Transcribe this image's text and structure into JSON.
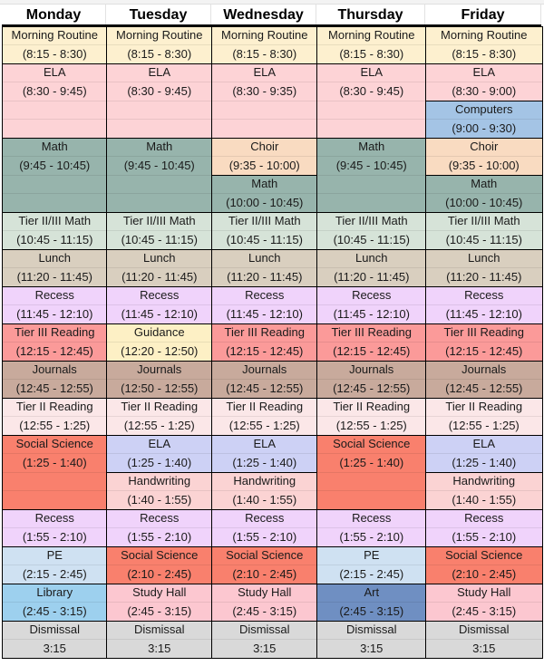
{
  "headers": [
    "Monday",
    "Tuesday",
    "Wednesday",
    "Thursday",
    "Friday"
  ],
  "colors": {
    "morning": "#fdf0cf",
    "ela": "#fdd3d6",
    "math": "#97b4ac",
    "choir": "#f9dbc1",
    "computers": "#a4c4e5",
    "tier_math": "#d6e3d8",
    "lunch": "#d9cfbf",
    "recess": "#f0d3fb",
    "tier3_reading": "#fb9a99",
    "guidance": "#fdf0c5",
    "journals": "#c8aa9c",
    "tier2_reading": "#fbe7e8",
    "social_science": "#f9806d",
    "ela_lav": "#cdd1f5",
    "handwriting": "#fbd3d3",
    "pe": "#cfe1f2",
    "library": "#9dd0ee",
    "study_hall": "#fcc7d0",
    "art": "#6f8fc2",
    "dismissal": "#d9d9d9"
  },
  "columns": [
    {
      "day": "Monday",
      "blocks": [
        {
          "name": "Morning Routine",
          "time": "(8:15 - 8:30)",
          "rows": 2,
          "color": "morning"
        },
        {
          "name": "ELA",
          "time": "(8:30 - 9:45)",
          "rows": 4,
          "color": "ela"
        },
        {
          "name": "Math",
          "time": "(9:45 - 10:45)",
          "rows": 4,
          "color": "math"
        },
        {
          "name": "Tier II/III Math",
          "time": "(10:45 - 11:15)",
          "rows": 2,
          "color": "tier_math"
        },
        {
          "name": "Lunch",
          "time": "(11:20 - 11:45)",
          "rows": 2,
          "color": "lunch"
        },
        {
          "name": "Recess",
          "time": "(11:45 - 12:10)",
          "rows": 2,
          "color": "recess"
        },
        {
          "name": "Tier III Reading",
          "time": "(12:15 - 12:45)",
          "rows": 2,
          "color": "tier3_reading"
        },
        {
          "name": "Journals",
          "time": "(12:45 - 12:55)",
          "rows": 2,
          "color": "journals"
        },
        {
          "name": "Tier II Reading",
          "time": "(12:55 - 1:25)",
          "rows": 2,
          "color": "tier2_reading"
        },
        {
          "name": "Social Science",
          "time": "(1:25 - 1:40)",
          "rows": 4,
          "color": "social_science"
        },
        {
          "name": "Recess",
          "time": "(1:55 - 2:10)",
          "rows": 2,
          "color": "recess"
        },
        {
          "name": "PE",
          "time": "(2:15 - 2:45)",
          "rows": 2,
          "color": "pe"
        },
        {
          "name": "Library",
          "time": "(2:45 - 3:15)",
          "rows": 2,
          "color": "library"
        },
        {
          "name": "Dismissal",
          "time": "3:15",
          "rows": 2,
          "color": "dismissal"
        }
      ]
    },
    {
      "day": "Tuesday",
      "blocks": [
        {
          "name": "Morning Routine",
          "time": "(8:15 - 8:30)",
          "rows": 2,
          "color": "morning"
        },
        {
          "name": "ELA",
          "time": "(8:30 - 9:45)",
          "rows": 4,
          "color": "ela"
        },
        {
          "name": "Math",
          "time": "(9:45 - 10:45)",
          "rows": 4,
          "color": "math"
        },
        {
          "name": "Tier II/III Math",
          "time": "(10:45 - 11:15)",
          "rows": 2,
          "color": "tier_math"
        },
        {
          "name": "Lunch",
          "time": "(11:20 - 11:45)",
          "rows": 2,
          "color": "lunch"
        },
        {
          "name": "Recess",
          "time": "(11:45 - 12:10)",
          "rows": 2,
          "color": "recess"
        },
        {
          "name": "Guidance",
          "time": "(12:20 - 12:50)",
          "rows": 2,
          "color": "guidance"
        },
        {
          "name": "Journals",
          "time": "(12:50 - 12:55)",
          "rows": 2,
          "color": "journals"
        },
        {
          "name": "Tier II Reading",
          "time": "(12:55 - 1:25)",
          "rows": 2,
          "color": "tier2_reading"
        },
        {
          "name": "ELA",
          "time": "(1:25 - 1:40)",
          "rows": 2,
          "color": "ela_lav"
        },
        {
          "name": "Handwriting",
          "time": "(1:40 - 1:55)",
          "rows": 2,
          "color": "handwriting"
        },
        {
          "name": "Recess",
          "time": "(1:55 - 2:10)",
          "rows": 2,
          "color": "recess"
        },
        {
          "name": "Social Science",
          "time": "(2:10 - 2:45)",
          "rows": 2,
          "color": "social_science"
        },
        {
          "name": "Study Hall",
          "time": "(2:45 - 3:15)",
          "rows": 2,
          "color": "study_hall"
        },
        {
          "name": "Dismissal",
          "time": "3:15",
          "rows": 2,
          "color": "dismissal"
        }
      ]
    },
    {
      "day": "Wednesday",
      "blocks": [
        {
          "name": "Morning Routine",
          "time": "(8:15 - 8:30)",
          "rows": 2,
          "color": "morning"
        },
        {
          "name": "ELA",
          "time": "(8:30 - 9:35)",
          "rows": 4,
          "color": "ela"
        },
        {
          "name": "Choir",
          "time": "(9:35 - 10:00)",
          "rows": 2,
          "color": "choir"
        },
        {
          "name": "Math",
          "time": "(10:00 - 10:45)",
          "rows": 2,
          "color": "math"
        },
        {
          "name": "Tier II/III Math",
          "time": "(10:45 - 11:15)",
          "rows": 2,
          "color": "tier_math"
        },
        {
          "name": "Lunch",
          "time": "(11:20 - 11:45)",
          "rows": 2,
          "color": "lunch"
        },
        {
          "name": "Recess",
          "time": "(11:45 - 12:10)",
          "rows": 2,
          "color": "recess"
        },
        {
          "name": "Tier III Reading",
          "time": "(12:15 - 12:45)",
          "rows": 2,
          "color": "tier3_reading"
        },
        {
          "name": "Journals",
          "time": "(12:45 - 12:55)",
          "rows": 2,
          "color": "journals"
        },
        {
          "name": "Tier II Reading",
          "time": "(12:55 - 1:25)",
          "rows": 2,
          "color": "tier2_reading"
        },
        {
          "name": "ELA",
          "time": "(1:25 - 1:40)",
          "rows": 2,
          "color": "ela_lav"
        },
        {
          "name": "Handwriting",
          "time": "(1:40 - 1:55)",
          "rows": 2,
          "color": "handwriting"
        },
        {
          "name": "Recess",
          "time": "(1:55 - 2:10)",
          "rows": 2,
          "color": "recess"
        },
        {
          "name": "Social Science",
          "time": "(2:10 - 2:45)",
          "rows": 2,
          "color": "social_science"
        },
        {
          "name": "Study Hall",
          "time": "(2:45 - 3:15)",
          "rows": 2,
          "color": "study_hall"
        },
        {
          "name": "Dismissal",
          "time": "3:15",
          "rows": 2,
          "color": "dismissal"
        }
      ]
    },
    {
      "day": "Thursday",
      "blocks": [
        {
          "name": "Morning Routine",
          "time": "(8:15 - 8:30)",
          "rows": 2,
          "color": "morning"
        },
        {
          "name": "ELA",
          "time": "(8:30 - 9:45)",
          "rows": 4,
          "color": "ela"
        },
        {
          "name": "Math",
          "time": "(9:45 - 10:45)",
          "rows": 4,
          "color": "math"
        },
        {
          "name": "Tier II/III Math",
          "time": "(10:45 - 11:15)",
          "rows": 2,
          "color": "tier_math"
        },
        {
          "name": "Lunch",
          "time": "(11:20 - 11:45)",
          "rows": 2,
          "color": "lunch"
        },
        {
          "name": "Recess",
          "time": "(11:45 - 12:10)",
          "rows": 2,
          "color": "recess"
        },
        {
          "name": "Tier III Reading",
          "time": "(12:15 - 12:45)",
          "rows": 2,
          "color": "tier3_reading"
        },
        {
          "name": "Journals",
          "time": "(12:45 - 12:55)",
          "rows": 2,
          "color": "journals"
        },
        {
          "name": "Tier II Reading",
          "time": "(12:55 - 1:25)",
          "rows": 2,
          "color": "tier2_reading"
        },
        {
          "name": "Social Science",
          "time": "(1:25 - 1:40)",
          "rows": 4,
          "color": "social_science"
        },
        {
          "name": "Recess",
          "time": "(1:55 - 2:10)",
          "rows": 2,
          "color": "recess"
        },
        {
          "name": "PE",
          "time": "(2:15 - 2:45)",
          "rows": 2,
          "color": "pe"
        },
        {
          "name": "Art",
          "time": "(2:45 - 3:15)",
          "rows": 2,
          "color": "art"
        },
        {
          "name": "Dismissal",
          "time": "3:15",
          "rows": 2,
          "color": "dismissal"
        }
      ]
    },
    {
      "day": "Friday",
      "blocks": [
        {
          "name": "Morning Routine",
          "time": "(8:15 - 8:30)",
          "rows": 2,
          "color": "morning"
        },
        {
          "name": "ELA",
          "time": "(8:30 - 9:00)",
          "rows": 2,
          "color": "ela"
        },
        {
          "name": "Computers",
          "time": "(9:00 - 9:30)",
          "rows": 2,
          "color": "computers"
        },
        {
          "name": "Choir",
          "time": "(9:35 - 10:00)",
          "rows": 2,
          "color": "choir"
        },
        {
          "name": "Math",
          "time": "(10:00 - 10:45)",
          "rows": 2,
          "color": "math"
        },
        {
          "name": "Tier II/III Math",
          "time": "(10:45 - 11:15)",
          "rows": 2,
          "color": "tier_math"
        },
        {
          "name": "Lunch",
          "time": "(11:20 - 11:45)",
          "rows": 2,
          "color": "lunch"
        },
        {
          "name": "Recess",
          "time": "(11:45 - 12:10)",
          "rows": 2,
          "color": "recess"
        },
        {
          "name": "Tier III Reading",
          "time": "(12:15 - 12:45)",
          "rows": 2,
          "color": "tier3_reading"
        },
        {
          "name": "Journals",
          "time": "(12:45 - 12:55)",
          "rows": 2,
          "color": "journals"
        },
        {
          "name": "Tier II Reading",
          "time": "(12:55 - 1:25)",
          "rows": 2,
          "color": "tier2_reading"
        },
        {
          "name": "ELA",
          "time": "(1:25 - 1:40)",
          "rows": 2,
          "color": "ela_lav"
        },
        {
          "name": "Handwriting",
          "time": "(1:40 - 1:55)",
          "rows": 2,
          "color": "handwriting"
        },
        {
          "name": "Recess",
          "time": "(1:55 - 2:10)",
          "rows": 2,
          "color": "recess"
        },
        {
          "name": "Social Science",
          "time": "(2:10 - 2:45)",
          "rows": 2,
          "color": "social_science"
        },
        {
          "name": "Study Hall",
          "time": "(2:45 - 3:15)",
          "rows": 2,
          "color": "study_hall"
        },
        {
          "name": "Dismissal",
          "time": "3:15",
          "rows": 2,
          "color": "dismissal"
        }
      ]
    }
  ]
}
